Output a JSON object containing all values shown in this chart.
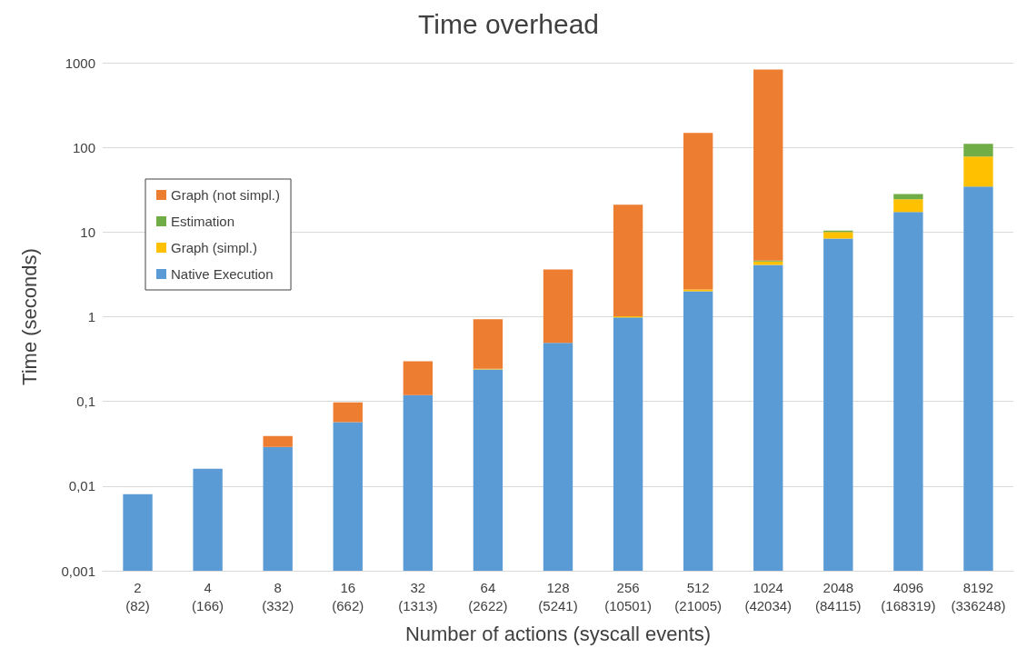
{
  "chart_data": {
    "type": "bar",
    "title": "Time overhead",
    "xlabel": "Number of actions (syscall events)",
    "ylabel": "Time (seconds)",
    "categories": [
      "2\n(82)",
      "4\n(166)",
      "8\n(332)",
      "16\n(662)",
      "32\n(1313)",
      "64\n(2622)",
      "128\n(5241)",
      "256\n(10501)",
      "512\n(21005)",
      "1024\n(42034)",
      "2048\n(84115)",
      "4096\n(168319)",
      "8192\n(336248)"
    ],
    "stacked": true,
    "log": "y",
    "grid": "y",
    "legend": "left",
    "ylim": [
      0.001,
      1000
    ],
    "yticks": [
      {
        "value": 0.001,
        "label": "0,001"
      },
      {
        "value": 0.01,
        "label": "0,01"
      },
      {
        "value": 0.1,
        "label": "0,1"
      },
      1,
      10,
      100,
      1000
    ],
    "series": [
      {
        "name": "Native Execution",
        "color": "#5b9bd5",
        "values": [
          0.008,
          0.016,
          0.029,
          0.057,
          0.119,
          0.238,
          0.49,
          0.98,
          2.0,
          4.1,
          8.4,
          17.3,
          34.5
        ]
      },
      {
        "name": "Graph (simpl.)",
        "color": "#ffc000",
        "values": [
          null,
          null,
          null,
          null,
          null,
          0.005,
          null,
          0.03,
          0.1,
          0.4,
          1.6,
          7.1,
          43.5
        ]
      },
      {
        "name": "Estimation",
        "color": "#70ad47",
        "values": [
          null,
          null,
          null,
          null,
          null,
          null,
          null,
          null,
          null,
          0.1,
          0.4,
          3.8,
          32
        ]
      },
      {
        "name": "Graph (not simpl.)",
        "color": "#ed7d31",
        "values": [
          null,
          null,
          0.01,
          0.0405,
          0.178,
          0.69,
          3.12,
          20,
          146,
          825,
          null,
          null,
          null
        ]
      }
    ]
  }
}
